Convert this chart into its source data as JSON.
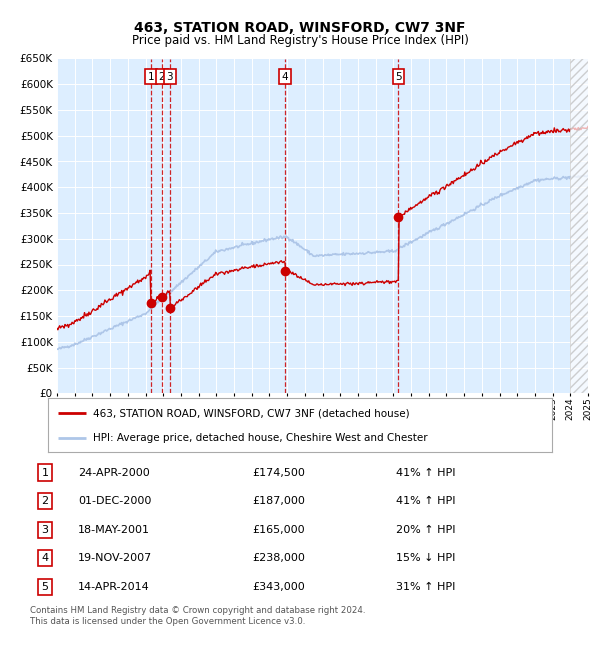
{
  "title": "463, STATION ROAD, WINSFORD, CW7 3NF",
  "subtitle": "Price paid vs. HM Land Registry's House Price Index (HPI)",
  "legend_line1": "463, STATION ROAD, WINSFORD, CW7 3NF (detached house)",
  "legend_line2": "HPI: Average price, detached house, Cheshire West and Chester",
  "footer1": "Contains HM Land Registry data © Crown copyright and database right 2024.",
  "footer2": "This data is licensed under the Open Government Licence v3.0.",
  "hpi_color": "#aec6e8",
  "price_color": "#cc0000",
  "bg_color": "#ddeeff",
  "grid_color": "#ffffff",
  "sale_events": [
    {
      "num": 1,
      "date": "24-APR-2000",
      "price": 174500,
      "year": 2000.3,
      "pct": "41%",
      "dir": "↑"
    },
    {
      "num": 2,
      "date": "01-DEC-2000",
      "price": 187000,
      "year": 2000.92,
      "pct": "41%",
      "dir": "↑"
    },
    {
      "num": 3,
      "date": "18-MAY-2001",
      "price": 165000,
      "year": 2001.38,
      "pct": "20%",
      "dir": "↑"
    },
    {
      "num": 4,
      "date": "19-NOV-2007",
      "price": 238000,
      "year": 2007.88,
      "pct": "15%",
      "dir": "↓"
    },
    {
      "num": 5,
      "date": "14-APR-2014",
      "price": 343000,
      "year": 2014.29,
      "pct": "31%",
      "dir": "↑"
    }
  ],
  "xmin": 1995,
  "xmax": 2025,
  "ymin": 0,
  "ymax": 650000,
  "ytick_values": [
    0,
    50000,
    100000,
    150000,
    200000,
    250000,
    300000,
    350000,
    400000,
    450000,
    500000,
    550000,
    600000,
    650000
  ],
  "ytick_labels": [
    "£0",
    "£50K",
    "£100K",
    "£150K",
    "£200K",
    "£250K",
    "£300K",
    "£350K",
    "£400K",
    "£450K",
    "£500K",
    "£550K",
    "£600K",
    "£650K"
  ]
}
